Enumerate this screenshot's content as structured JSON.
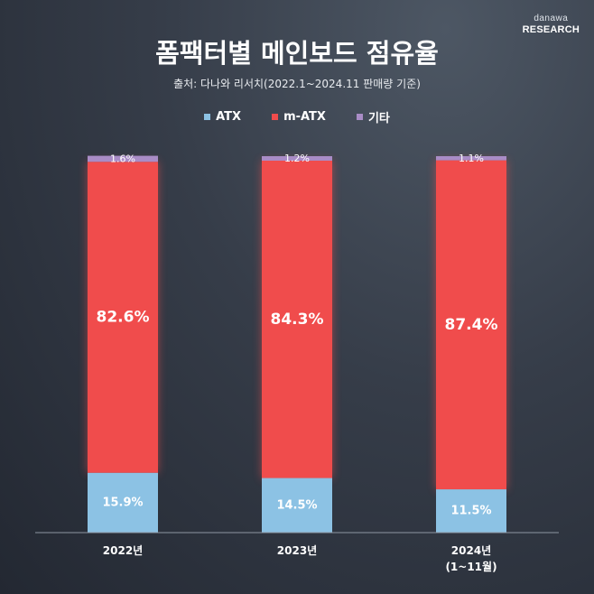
{
  "logo": {
    "top": "danawa",
    "bottom": "RESEARCH"
  },
  "title": "폼팩터별 메인보드 점유율",
  "source": "출처: 다나와 리서치(2022.1~2024.11 판매량 기준)",
  "colors": {
    "ATX": "#8cc2e4",
    "m-ATX": "#f04c4c",
    "기타": "#a98cc6",
    "baseline": "#8e96a2"
  },
  "chart_data": {
    "type": "bar",
    "stacked": true,
    "title": "폼팩터별 메인보드 점유율",
    "categories": [
      [
        "2022년"
      ],
      [
        "2023년"
      ],
      [
        "2024년",
        "(1~11월)"
      ]
    ],
    "series": [
      {
        "name": "ATX",
        "values": [
          15.9,
          14.5,
          11.5
        ]
      },
      {
        "name": "m-ATX",
        "values": [
          82.6,
          84.3,
          87.4
        ]
      },
      {
        "name": "기타",
        "values": [
          1.6,
          1.2,
          1.1
        ]
      }
    ],
    "ylim": [
      0,
      100
    ],
    "legend": "top-center",
    "grid": false
  }
}
